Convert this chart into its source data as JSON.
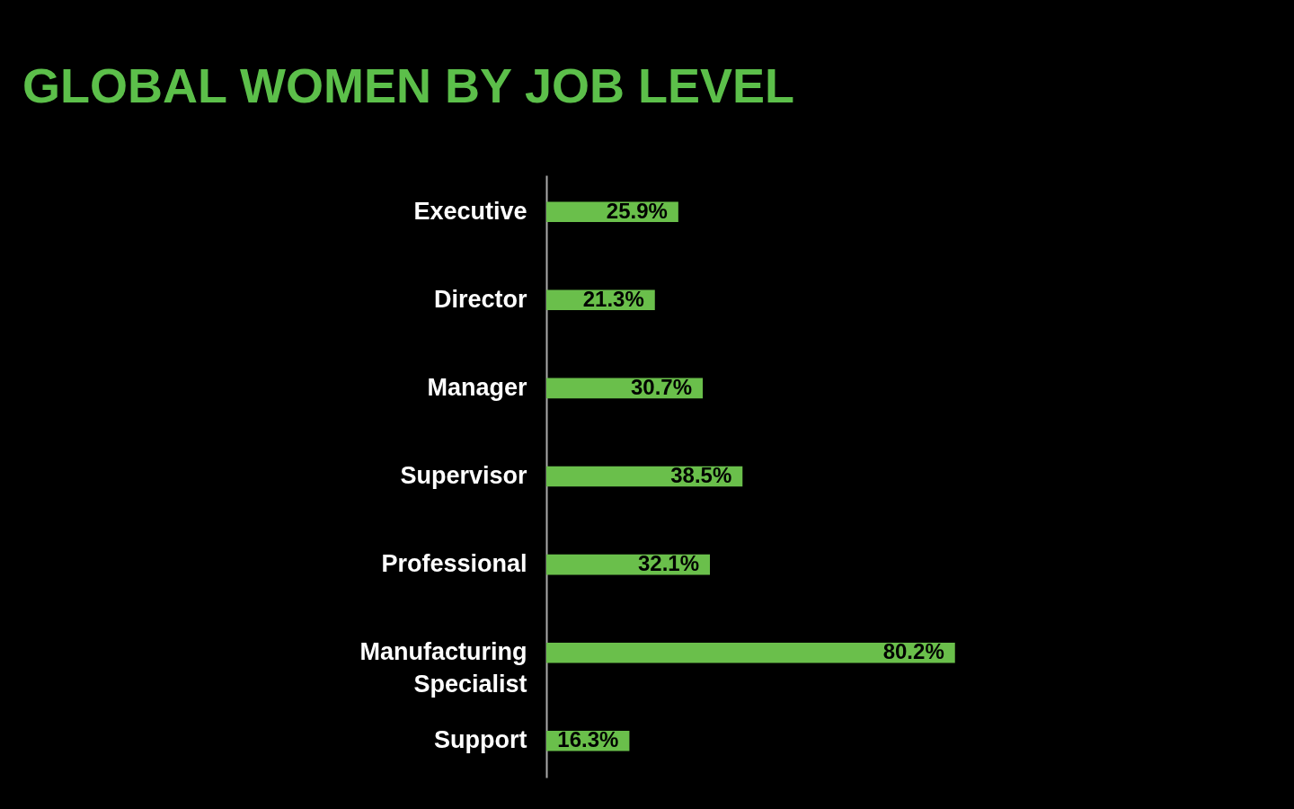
{
  "chart_data": {
    "type": "bar",
    "orientation": "horizontal",
    "title": "GLOBAL WOMEN BY JOB LEVEL",
    "categories": [
      "Executive",
      "Director",
      "Manager",
      "Supervisor",
      "Professional",
      "Manufacturing Specialist",
      "Support"
    ],
    "values": [
      25.9,
      21.3,
      30.7,
      38.5,
      32.1,
      80.2,
      16.3
    ],
    "value_labels": [
      "25.9%",
      "21.3%",
      "30.7%",
      "38.5%",
      "32.1%",
      "80.2%",
      "16.3%"
    ],
    "color": "#6abf4b"
  }
}
